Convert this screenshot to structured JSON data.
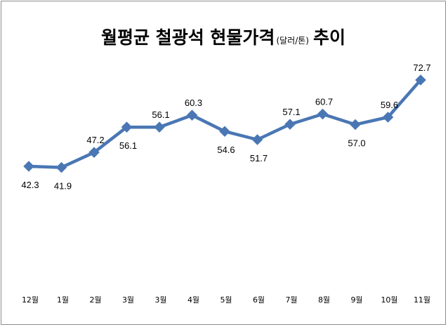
{
  "chart_data": {
    "type": "line",
    "title": "월평균 철광석 현물가격",
    "title_unit": "(달러/톤)",
    "title_suffix": "추이",
    "xlabel": "",
    "ylabel": "",
    "categories": [
      "12월",
      "1월",
      "2월",
      "3월",
      "3월",
      "4월",
      "5월",
      "6월",
      "7월",
      "8월",
      "9월",
      "10월",
      "11월"
    ],
    "series": [
      {
        "values": [
          42.3,
          41.9,
          47.2,
          56.1,
          56.1,
          60.3,
          54.6,
          51.7,
          57.1,
          60.7,
          57.0,
          59.6,
          72.7
        ],
        "labels": [
          "42.3",
          "41.9",
          "47.2",
          "56.1",
          "56.1",
          "60.3",
          "54.6",
          "51.7",
          "57.1",
          "60.7",
          "57.0",
          "59.6",
          "72.7"
        ],
        "label_position": [
          "below",
          "below",
          "above",
          "below",
          "above",
          "above",
          "below",
          "below",
          "above",
          "above",
          "below",
          "above",
          "above"
        ]
      }
    ],
    "grid": false,
    "legend": "none",
    "colors": {
      "line": "#4a77b4",
      "marker": "#4a77b4",
      "frame": "#8c8c8c"
    }
  }
}
